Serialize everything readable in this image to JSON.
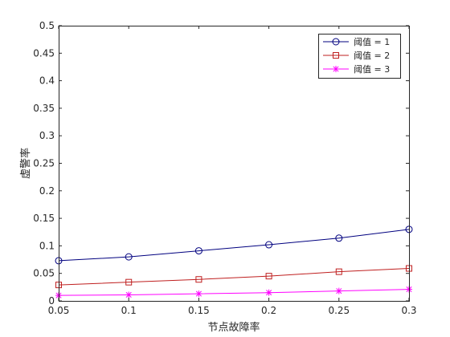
{
  "chart_data": {
    "type": "line",
    "title": "",
    "xlabel": "节点故障率",
    "ylabel": "虚警率",
    "x": [
      0.05,
      0.1,
      0.15,
      0.2,
      0.25,
      0.3
    ],
    "xlim": [
      0.05,
      0.3
    ],
    "ylim": [
      0,
      0.5
    ],
    "x_ticks": [
      "0.05",
      "0.1",
      "0.15",
      "0.2",
      "0.25",
      "0.3"
    ],
    "y_ticks": [
      "0",
      "0.05",
      "0.1",
      "0.15",
      "0.2",
      "0.25",
      "0.3",
      "0.35",
      "0.4",
      "0.45",
      "0.5"
    ],
    "grid": false,
    "legend_position": "top-right",
    "series": [
      {
        "name": "阈值 = 1",
        "color": "#00007f",
        "marker": "circle",
        "values": [
          0.073,
          0.08,
          0.091,
          0.102,
          0.114,
          0.13
        ]
      },
      {
        "name": "阈值 = 2",
        "color": "#bf1f1f",
        "marker": "square",
        "values": [
          0.029,
          0.034,
          0.039,
          0.045,
          0.053,
          0.059
        ]
      },
      {
        "name": "阈值 = 3",
        "color": "#ff00ff",
        "marker": "star",
        "values": [
          0.01,
          0.011,
          0.013,
          0.015,
          0.018,
          0.021
        ]
      }
    ]
  }
}
